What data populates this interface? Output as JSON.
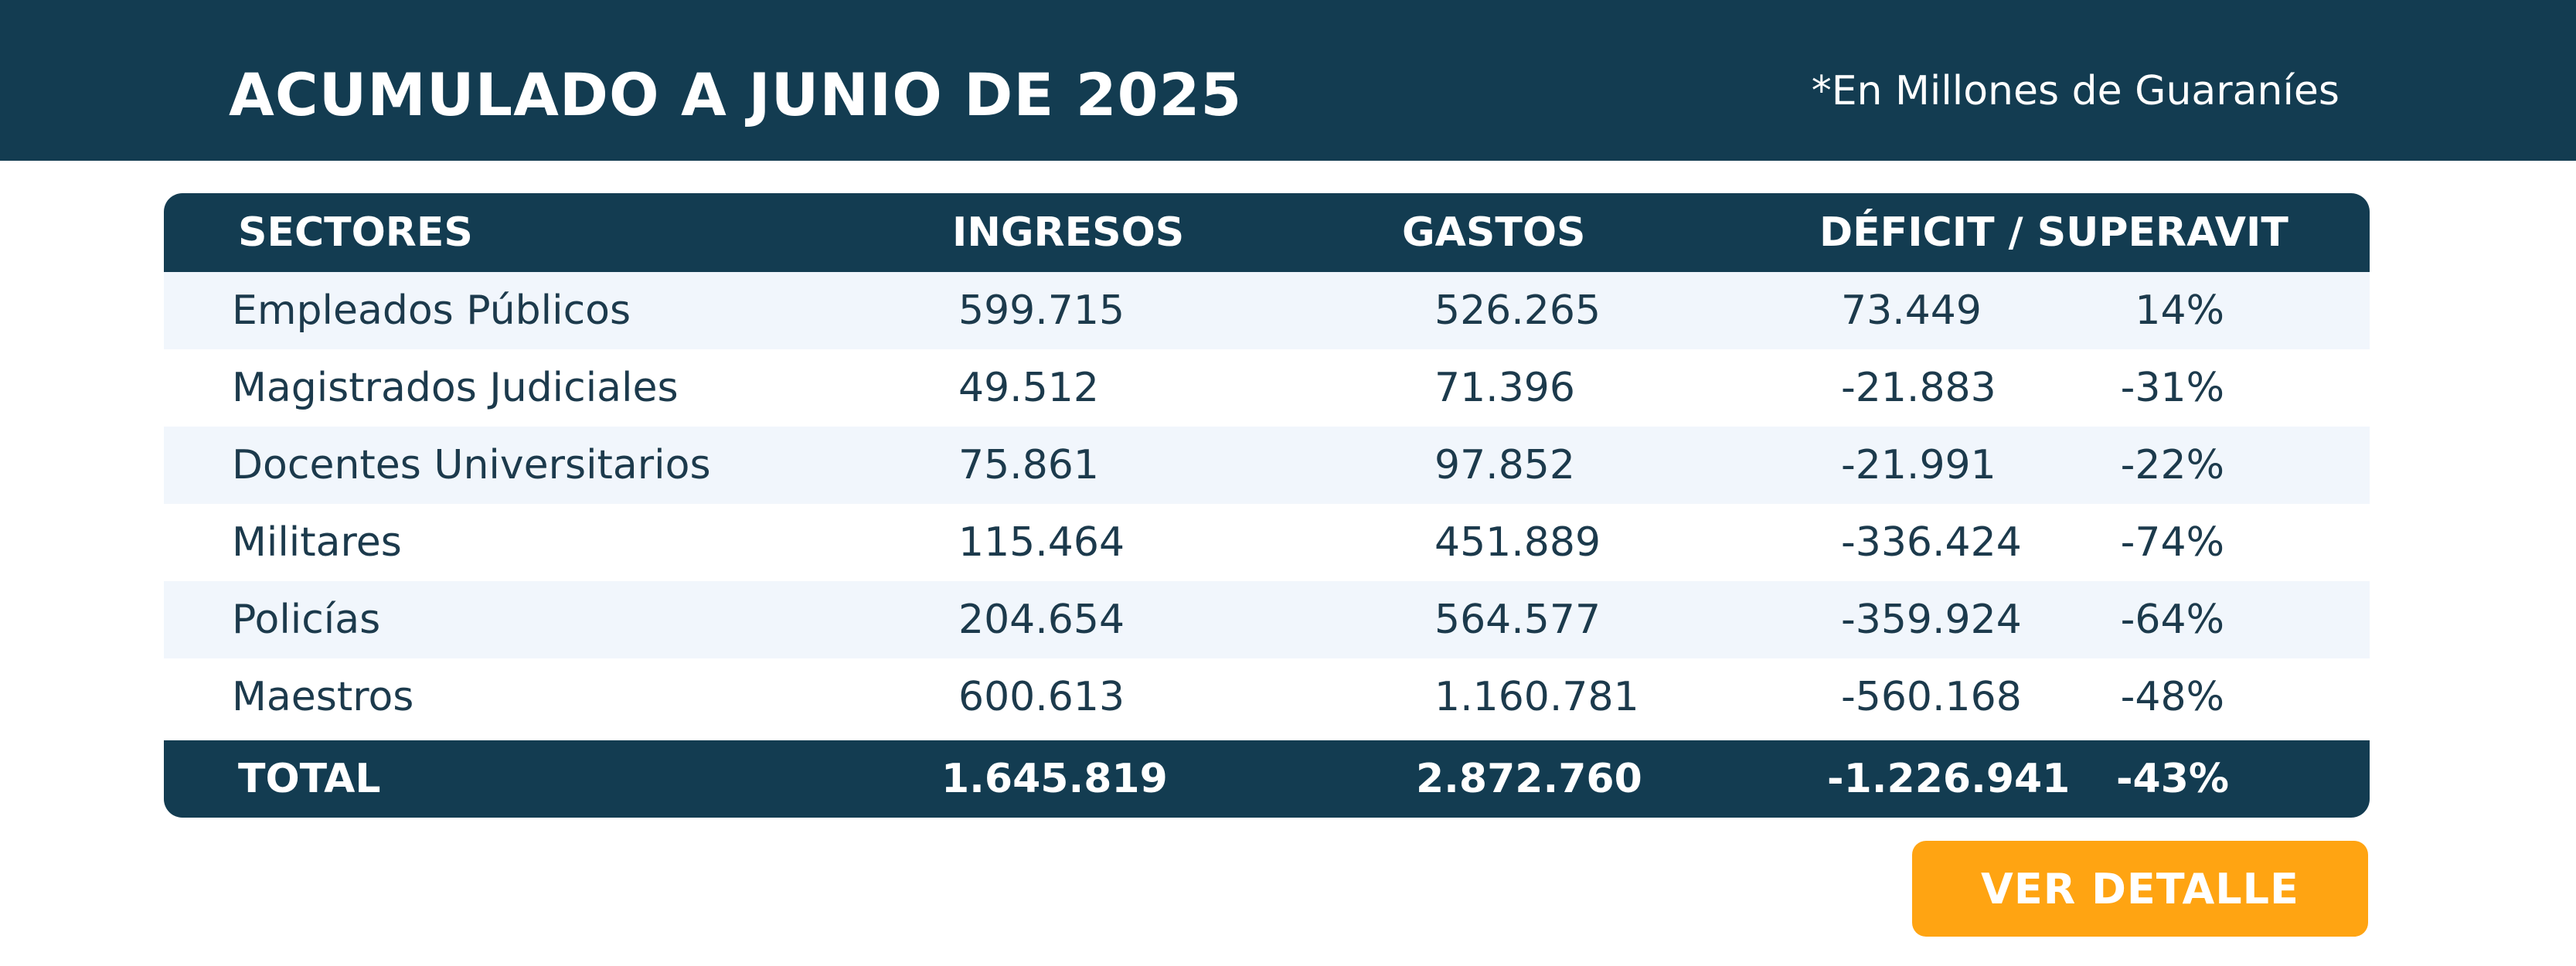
{
  "header": {
    "title": "ACUMULADO A JUNIO DE 2025",
    "note": "*En Millones de Guaraníes"
  },
  "table": {
    "columns": {
      "sector": "SECTORES",
      "ingresos": "INGRESOS",
      "gastos": "GASTOS",
      "deficit": "DÉFICIT / SUPERAVIT"
    },
    "rows": [
      {
        "sector": "Empleados Públicos",
        "ingresos": "599.715",
        "gastos": "526.265",
        "deficit": "73.449",
        "pct": "14%"
      },
      {
        "sector": "Magistrados Judiciales",
        "ingresos": "49.512",
        "gastos": "71.396",
        "deficit": "-21.883",
        "pct": "-31%"
      },
      {
        "sector": "Docentes Universitarios",
        "ingresos": "75.861",
        "gastos": "97.852",
        "deficit": "-21.991",
        "pct": "-22%"
      },
      {
        "sector": "Militares",
        "ingresos": "115.464",
        "gastos": "451.889",
        "deficit": "-336.424",
        "pct": "-74%"
      },
      {
        "sector": "Policías",
        "ingresos": "204.654",
        "gastos": "564.577",
        "deficit": "-359.924",
        "pct": "-64%"
      },
      {
        "sector": "Maestros",
        "ingresos": "600.613",
        "gastos": "1.160.781",
        "deficit": "-560.168",
        "pct": "-48%"
      }
    ],
    "total": {
      "label": "TOTAL",
      "ingresos": "1.645.819",
      "gastos": "2.872.760",
      "deficit": "-1.226.941",
      "pct": "-43%"
    }
  },
  "button": {
    "label": "VER DETALLE",
    "color": "#ffa412"
  },
  "colors": {
    "primary": "#133c51",
    "row_alt": "#f1f6fc",
    "accent": "#ffa412"
  }
}
